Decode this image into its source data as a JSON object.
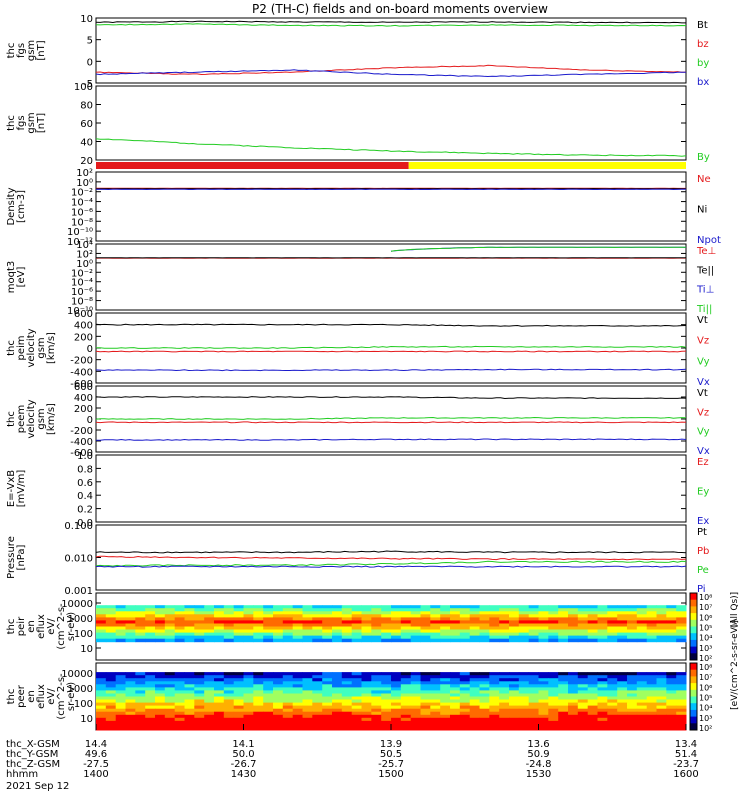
{
  "title": "P2 (TH-C) fields and on-board moments overview",
  "colors": {
    "black": "#000000",
    "red": "#e41a1c",
    "green": "#22cc22",
    "blue": "#1a1acc",
    "yellow": "#ffff00",
    "teal": "#2f7f8f"
  },
  "chart_data": [
    {
      "type": "line",
      "ylabel": [
        "thc",
        "fgs",
        "gsm",
        "[nT]"
      ],
      "ylim": [
        -5,
        10
      ],
      "yticks": [
        "10",
        "5",
        "0",
        "-5"
      ],
      "series": [
        {
          "name": "Bt",
          "color": "black",
          "values": [
            9.0,
            9.2,
            9.1,
            9.0,
            9.1,
            9.0,
            8.9
          ]
        },
        {
          "name": "bz",
          "color": "red",
          "values": [
            -2.5,
            -3.0,
            -2.5,
            -1.5,
            -1.0,
            -2.0,
            -2.5
          ]
        },
        {
          "name": "by",
          "color": "green",
          "values": [
            8.4,
            8.6,
            8.3,
            8.2,
            8.4,
            8.3,
            8.2
          ]
        },
        {
          "name": "bx",
          "color": "blue",
          "values": [
            -3.0,
            -2.5,
            -2.0,
            -3.0,
            -3.5,
            -3.0,
            -2.5
          ]
        }
      ]
    },
    {
      "type": "line",
      "ylabel": [
        "thc",
        "fgs",
        "gsm",
        "[nT]"
      ],
      "ylim": [
        10,
        100
      ],
      "yticks": [
        "100",
        "80",
        "60",
        "40",
        "20"
      ],
      "series": [
        {
          "name": "By",
          "color": "green",
          "values": [
            36,
            30,
            25,
            21,
            18,
            16,
            15
          ]
        }
      ]
    },
    {
      "type": "line",
      "ylabel": [
        "Density",
        "[cm-3]"
      ],
      "ylim_log": [
        -12,
        2
      ],
      "yticks": [
        "10²",
        "10⁰",
        "10⁻²",
        "10⁻⁴",
        "10⁻⁶",
        "10⁻⁸",
        "10⁻¹⁰",
        "10⁻¹²"
      ],
      "series": [
        {
          "name": "Ne",
          "color": "red",
          "values": [
            0.05,
            0.05,
            0.05,
            0.05,
            0.05,
            0.05,
            0.05
          ]
        },
        {
          "name": "Ni",
          "color": "black",
          "values": [
            0.04,
            0.04,
            0.04,
            0.04,
            0.04,
            0.04,
            0.04
          ]
        },
        {
          "name": "Npot",
          "color": "blue",
          "values": [
            0.03,
            0.03,
            0.03,
            0.03,
            0.03,
            0.03,
            0.03
          ]
        }
      ]
    },
    {
      "type": "line",
      "ylabel": [
        "moqt3",
        "[eV]"
      ],
      "ylim_log": [
        -10,
        4
      ],
      "yticks": [
        "10⁴",
        "10²",
        "10⁰",
        "10⁻²",
        "10⁻⁴",
        "10⁻⁶",
        "10⁻⁸",
        "10⁻¹⁰"
      ],
      "series": [
        {
          "name": "Te⊥",
          "color": "red",
          "values": [
            10,
            10,
            10,
            10,
            10,
            10,
            10
          ]
        },
        {
          "name": "Te||",
          "color": "black",
          "values": [
            12,
            12,
            12,
            12,
            12,
            12,
            12
          ]
        },
        {
          "name": "Ti⊥",
          "color": "blue",
          "values": [
            null,
            null,
            null,
            300,
            2000,
            2000,
            2000
          ]
        },
        {
          "name": "Ti||",
          "color": "green",
          "values": [
            null,
            null,
            null,
            300,
            2000,
            2000,
            2000
          ]
        }
      ]
    },
    {
      "type": "line",
      "ylabel": [
        "thc",
        "peim",
        "velocity",
        "gsm",
        "[km/s]"
      ],
      "ylim": [
        -600,
        600
      ],
      "yticks": [
        "600",
        "400",
        "200",
        "0",
        "-200",
        "-400",
        "-600"
      ],
      "series": [
        {
          "name": "Vt",
          "color": "black",
          "values": [
            400,
            400,
            400,
            400,
            380,
            380,
            380
          ]
        },
        {
          "name": "Vz",
          "color": "red",
          "values": [
            -60,
            -60,
            -60,
            -60,
            -60,
            -60,
            -60
          ]
        },
        {
          "name": "Vy",
          "color": "green",
          "values": [
            0,
            0,
            0,
            20,
            20,
            20,
            20
          ]
        },
        {
          "name": "Vx",
          "color": "blue",
          "values": [
            -380,
            -380,
            -380,
            -380,
            -370,
            -370,
            -370
          ]
        }
      ]
    },
    {
      "type": "line",
      "ylabel": [
        "thc",
        "peem",
        "velocity",
        "gsm",
        "[km/s]"
      ],
      "ylim": [
        -600,
        600
      ],
      "yticks": [
        "600",
        "400",
        "200",
        "0",
        "-200",
        "-400",
        "-600"
      ],
      "series": [
        {
          "name": "Vt",
          "color": "black",
          "values": [
            400,
            400,
            400,
            400,
            380,
            380,
            380
          ]
        },
        {
          "name": "Vz",
          "color": "red",
          "values": [
            -60,
            -60,
            -60,
            -60,
            -60,
            -60,
            -60
          ]
        },
        {
          "name": "Vy",
          "color": "green",
          "values": [
            0,
            0,
            0,
            20,
            20,
            20,
            20
          ]
        },
        {
          "name": "Vx",
          "color": "blue",
          "values": [
            -380,
            -380,
            -380,
            -370,
            -370,
            -370,
            -370
          ]
        }
      ]
    },
    {
      "type": "line",
      "ylabel": [
        "E=-VxB",
        "[mV/m]"
      ],
      "ylim": [
        0,
        1
      ],
      "yticks": [
        "1.0",
        "0.8",
        "0.6",
        "0.4",
        "0.2",
        "0.0"
      ],
      "series": [
        {
          "name": "Ez",
          "color": "red",
          "values": []
        },
        {
          "name": "Ey",
          "color": "green",
          "values": []
        },
        {
          "name": "Ex",
          "color": "blue",
          "values": []
        }
      ]
    },
    {
      "type": "line",
      "ylabel": [
        "Pressure",
        "[nPa]"
      ],
      "ylim_log": [
        -3,
        0
      ],
      "yticks": [
        "0.100",
        "0.010",
        "0.001"
      ],
      "series": [
        {
          "name": "Pt",
          "color": "black",
          "values": [
            0.055,
            0.055,
            0.055,
            0.06,
            0.055,
            0.055,
            0.055
          ]
        },
        {
          "name": "Pb",
          "color": "red",
          "values": [
            0.035,
            0.032,
            0.03,
            0.028,
            0.027,
            0.026,
            0.026
          ]
        },
        {
          "name": "Pe",
          "color": "green",
          "values": [
            0.013,
            0.014,
            0.014,
            0.016,
            0.02,
            0.02,
            0.02
          ]
        },
        {
          "name": "Pi",
          "color": "blue",
          "values": [
            0.012,
            0.012,
            0.012,
            0.012,
            0.012,
            0.012,
            0.012
          ]
        }
      ]
    },
    {
      "type": "heatmap",
      "ylabel": [
        "thc",
        "peir",
        "en",
        "eflux",
        "eV/",
        "(cm^2-s-",
        "sr-eV)"
      ],
      "yticks": [
        "10000",
        "1000",
        "100",
        "10"
      ]
    },
    {
      "type": "heatmap",
      "ylabel": [
        "thc",
        "peer",
        "en",
        "eflux",
        "eV/",
        "(cm^2-s-",
        "sr-eV)"
      ],
      "yticks": [
        "10000",
        "1000",
        "100",
        "10"
      ]
    }
  ],
  "colorbar": {
    "ticks": [
      "10⁸",
      "10⁷",
      "10⁶",
      "10⁵",
      "10⁴",
      "10³",
      "10²"
    ],
    "label": "[eV/(cm^2-s-sr-eV)]",
    "label2": "(All Qs)]"
  },
  "xaxis": {
    "rows": [
      {
        "name": "thc_X-GSM",
        "values": [
          "14.4",
          "14.1",
          "13.9",
          "13.6",
          "13.4"
        ]
      },
      {
        "name": "thc_Y-GSM",
        "values": [
          "49.6",
          "50.0",
          "50.5",
          "50.9",
          "51.4"
        ]
      },
      {
        "name": "thc_Z-GSM",
        "values": [
          "-27.5",
          "-26.7",
          "-25.7",
          "-24.8",
          "-23.7"
        ]
      },
      {
        "name": "hhmm",
        "values": [
          "1400",
          "1430",
          "1500",
          "1530",
          "1600"
        ]
      }
    ],
    "date": "2021 Sep 12"
  }
}
